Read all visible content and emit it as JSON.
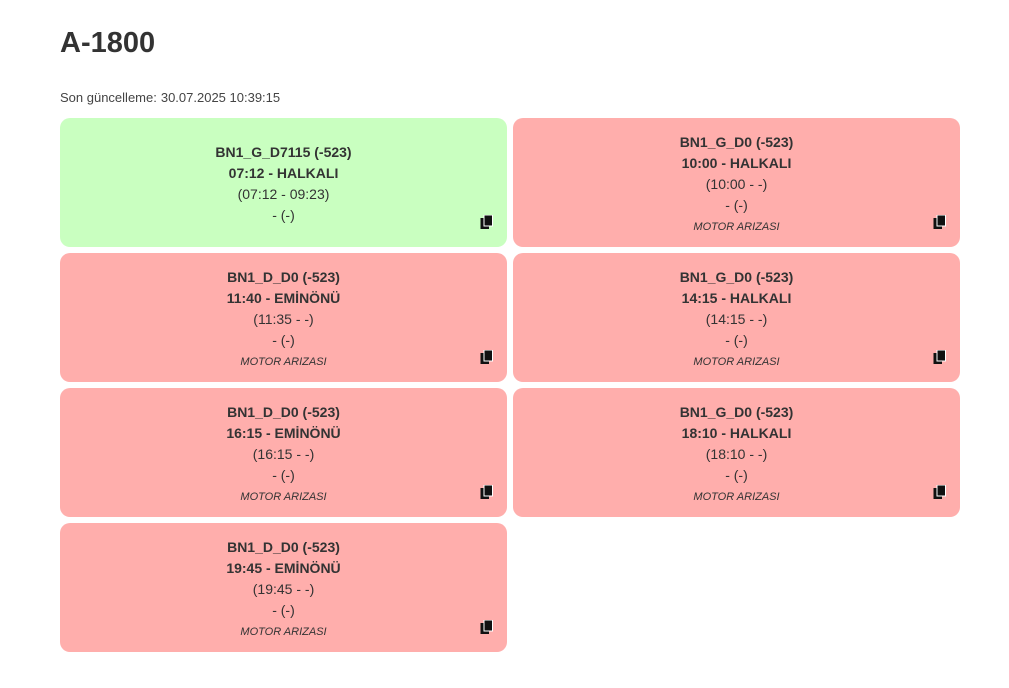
{
  "header": {
    "title": "A-1800",
    "updated_label": "Son güncelleme:",
    "updated_value": "30.07.2025 10:39:15"
  },
  "colors": {
    "ok": "#c9ffc0",
    "fault": "#ffaeac"
  },
  "cards": [
    {
      "status": "ok",
      "code": "BN1_G_D7115 (-523)",
      "departure": "07:12 - HALKALI",
      "window": "(07:12 - 09:23)",
      "extra": "- (-)",
      "note": "",
      "icon": "copy-icon"
    },
    {
      "status": "fault",
      "code": "BN1_G_D0 (-523)",
      "departure": "10:00 - HALKALI",
      "window": "(10:00 - -)",
      "extra": "- (-)",
      "note": "MOTOR ARIZASI",
      "icon": "copy-icon"
    },
    {
      "status": "fault",
      "code": "BN1_D_D0 (-523)",
      "departure": "11:40 - EMİNÖNÜ",
      "window": "(11:35 - -)",
      "extra": "- (-)",
      "note": "MOTOR ARIZASI",
      "icon": "copy-icon"
    },
    {
      "status": "fault",
      "code": "BN1_G_D0 (-523)",
      "departure": "14:15 - HALKALI",
      "window": "(14:15 - -)",
      "extra": "- (-)",
      "note": "MOTOR ARIZASI",
      "icon": "copy-icon"
    },
    {
      "status": "fault",
      "code": "BN1_D_D0 (-523)",
      "departure": "16:15 - EMİNÖNÜ",
      "window": "(16:15 - -)",
      "extra": "- (-)",
      "note": "MOTOR ARIZASI",
      "icon": "copy-icon"
    },
    {
      "status": "fault",
      "code": "BN1_G_D0 (-523)",
      "departure": "18:10 - HALKALI",
      "window": "(18:10 - -)",
      "extra": "- (-)",
      "note": "MOTOR ARIZASI",
      "icon": "copy-icon"
    },
    {
      "status": "fault",
      "code": "BN1_D_D0 (-523)",
      "departure": "19:45 - EMİNÖNÜ",
      "window": "(19:45 - -)",
      "extra": "- (-)",
      "note": "MOTOR ARIZASI",
      "icon": "copy-icon"
    }
  ]
}
